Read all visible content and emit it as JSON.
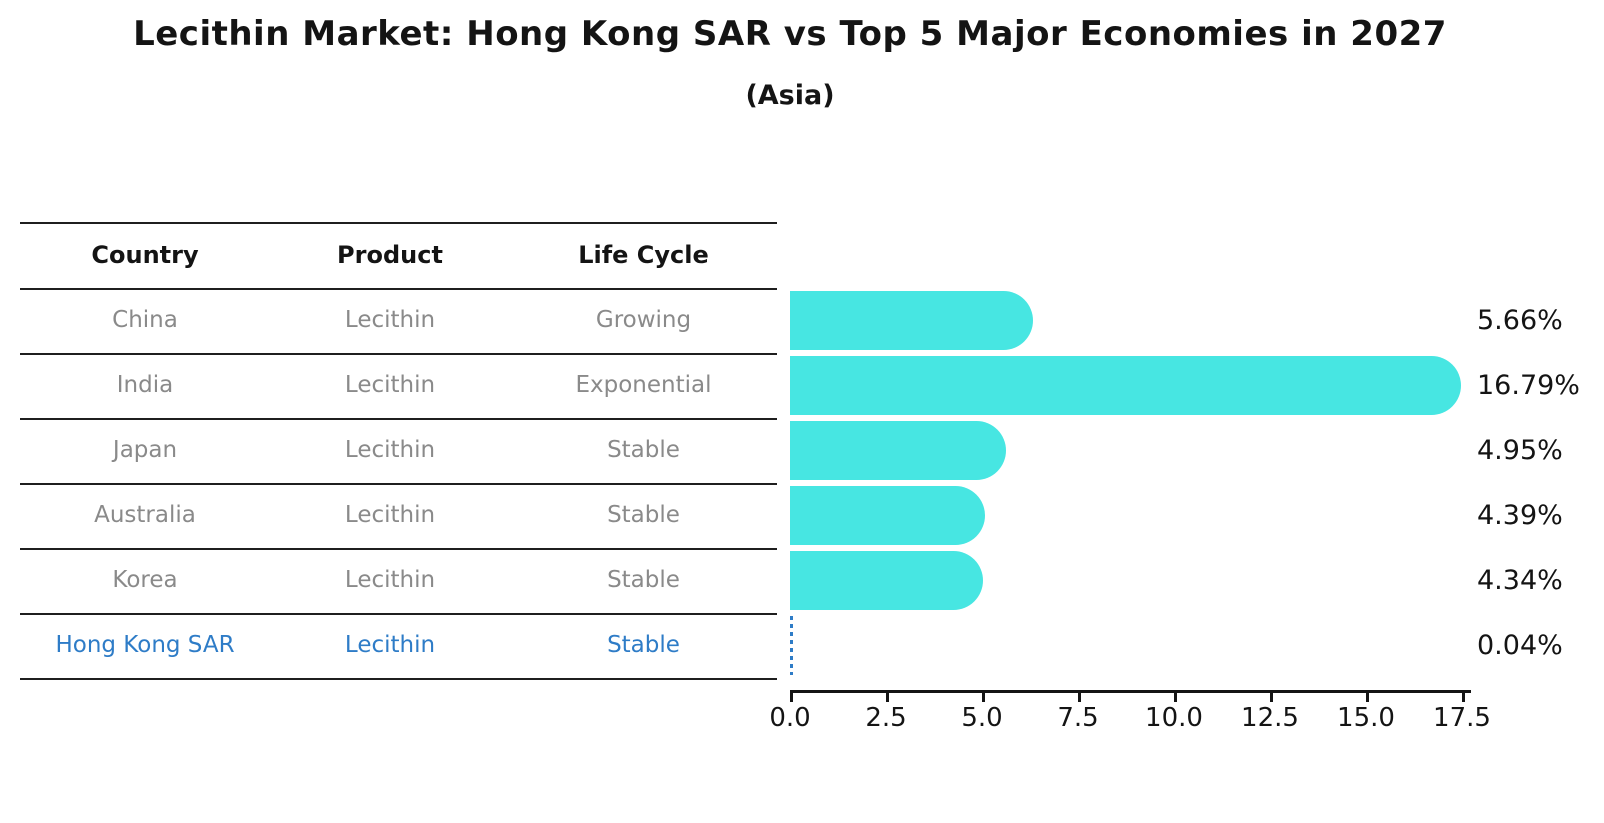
{
  "title": "Lecithin Market: Hong Kong SAR vs Top 5 Major Economies in 2027",
  "subtitle": "(Asia)",
  "table": {
    "headers": [
      "Country",
      "Product",
      "Life Cycle"
    ],
    "rows": [
      {
        "country": "China",
        "product": "Lecithin",
        "life_cycle": "Growing",
        "highlight": false
      },
      {
        "country": "India",
        "product": "Lecithin",
        "life_cycle": "Exponential",
        "highlight": false
      },
      {
        "country": "Japan",
        "product": "Lecithin",
        "life_cycle": "Stable",
        "highlight": false
      },
      {
        "country": "Australia",
        "product": "Lecithin",
        "life_cycle": "Stable",
        "highlight": false
      },
      {
        "country": "Korea",
        "product": "Lecithin",
        "life_cycle": "Stable",
        "highlight": false
      },
      {
        "country": "Hong Kong SAR",
        "product": "Lecithin",
        "life_cycle": "Stable",
        "highlight": true
      }
    ]
  },
  "chart_data": {
    "type": "bar",
    "orientation": "horizontal",
    "title": "Lecithin Market: Hong Kong SAR vs Top 5 Major Economies in 2027",
    "subtitle": "(Asia)",
    "categories": [
      "China",
      "India",
      "Japan",
      "Australia",
      "Korea",
      "Hong Kong SAR"
    ],
    "values": [
      5.66,
      16.79,
      4.95,
      4.39,
      4.34,
      0.04
    ],
    "value_labels": [
      "5.66%",
      "16.79%",
      "4.95%",
      "4.39%",
      "4.34%",
      "0.04%"
    ],
    "x_ticks": [
      "0.0",
      "2.5",
      "5.0",
      "7.5",
      "10.0",
      "12.5",
      "15.0",
      "17.5"
    ],
    "xlim": [
      0,
      17.5
    ],
    "xlabel": "",
    "ylabel": "",
    "grid": false,
    "legend": false,
    "bar_color": "#47e6e2",
    "highlight_bar_style": "blue-dashed",
    "highlight_color": "#2e7cc7",
    "text_color": "#141414",
    "muted_text_color": "#8a8a8a"
  }
}
